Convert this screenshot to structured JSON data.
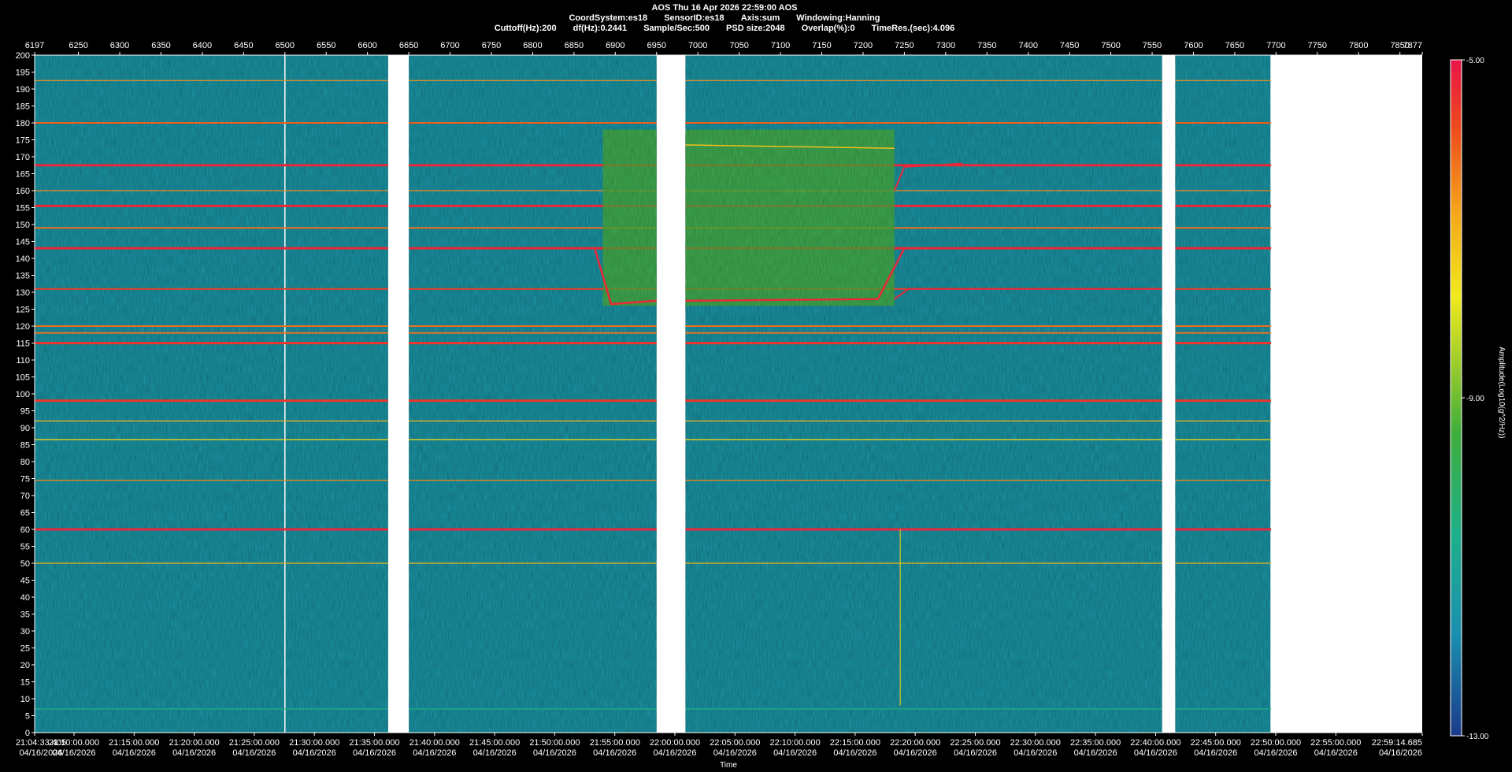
{
  "header": {
    "line1": "AOS  Thu 16 Apr 2026 22:59:00  AOS",
    "line2": [
      "CoordSystem:es18",
      "SensorID:es18",
      "Axis:sum",
      "Windowing:Hanning"
    ],
    "line3": [
      "Cuttoff(Hz):200",
      "df(Hz):0.2441",
      "Sample/Sec:500",
      "PSD size:2048",
      "Overlap(%):0",
      "TimeRes.(sec):4.096"
    ]
  },
  "chart_data": {
    "type": "heatmap",
    "title": "",
    "xlabel": "Time",
    "ylabel": "",
    "colorbar_label": "Amplitude(Log10(g^2/Hz))",
    "colorbar_ticks": [
      "-5.00",
      "-9.00",
      "-13.00"
    ],
    "colorbar_range": [
      -13,
      -5
    ],
    "ylim": [
      0,
      200
    ],
    "y_ticks": [
      0,
      5,
      10,
      15,
      20,
      25,
      30,
      35,
      40,
      45,
      50,
      55,
      60,
      65,
      70,
      75,
      80,
      85,
      90,
      95,
      100,
      105,
      110,
      115,
      120,
      125,
      130,
      135,
      140,
      145,
      150,
      155,
      160,
      165,
      170,
      175,
      180,
      185,
      190,
      195,
      200
    ],
    "top_axis_range": [
      6197,
      7877
    ],
    "top_axis_ticks": [
      "6197",
      "6250",
      "6300",
      "6350",
      "6400",
      "6450",
      "6500",
      "6550",
      "6600",
      "6650",
      "6700",
      "6750",
      "6800",
      "6850",
      "6900",
      "6950",
      "7000",
      "7050",
      "7100",
      "7150",
      "7200",
      "7250",
      "7300",
      "7350",
      "7400",
      "7450",
      "7500",
      "7550",
      "7600",
      "7650",
      "7700",
      "7750",
      "7800",
      "7850",
      "7877"
    ],
    "x_ticks": [
      {
        "time": "21:04:33.405",
        "date": "04/16/2026"
      },
      {
        "time": "21:10:00.000",
        "date": "04/16/2026"
      },
      {
        "time": "21:15:00.000",
        "date": "04/16/2026"
      },
      {
        "time": "21:20:00.000",
        "date": "04/16/2026"
      },
      {
        "time": "21:25:00.000",
        "date": "04/16/2026"
      },
      {
        "time": "21:30:00.000",
        "date": "04/16/2026"
      },
      {
        "time": "21:35:00.000",
        "date": "04/16/2026"
      },
      {
        "time": "21:40:00.000",
        "date": "04/16/2026"
      },
      {
        "time": "21:45:00.000",
        "date": "04/16/2026"
      },
      {
        "time": "21:50:00.000",
        "date": "04/16/2026"
      },
      {
        "time": "21:55:00.000",
        "date": "04/16/2026"
      },
      {
        "time": "22:00:00.000",
        "date": "04/16/2026"
      },
      {
        "time": "22:05:00.000",
        "date": "04/16/2026"
      },
      {
        "time": "22:10:00.000",
        "date": "04/16/2026"
      },
      {
        "time": "22:15:00.000",
        "date": "04/16/2026"
      },
      {
        "time": "22:20:00.000",
        "date": "04/16/2026"
      },
      {
        "time": "22:25:00.000",
        "date": "04/16/2026"
      },
      {
        "time": "22:30:00.000",
        "date": "04/16/2026"
      },
      {
        "time": "22:35:00.000",
        "date": "04/16/2026"
      },
      {
        "time": "22:40:00.000",
        "date": "04/16/2026"
      },
      {
        "time": "22:45:00.000",
        "date": "04/16/2026"
      },
      {
        "time": "22:50:00.000",
        "date": "04/16/2026"
      },
      {
        "time": "22:55:00.000",
        "date": "04/16/2026"
      },
      {
        "time": "22:59:14.685",
        "date": "04/16/2026"
      }
    ],
    "data_segments": [
      [
        6197,
        6625
      ],
      [
        6650,
        6950
      ],
      [
        6985,
        7562
      ],
      [
        7578,
        7694
      ]
    ],
    "dropout_lines": [
      6500,
      7694
    ],
    "horizontal_lines": [
      {
        "hz": 7,
        "level": -10.5
      },
      {
        "hz": 50,
        "level": -7.0
      },
      {
        "hz": 60,
        "level": -5.3
      },
      {
        "hz": 74.5,
        "level": -6.5
      },
      {
        "hz": 86.5,
        "level": -7.5
      },
      {
        "hz": 92,
        "level": -7.0
      },
      {
        "hz": 98,
        "level": -5.5
      },
      {
        "hz": 115,
        "level": -5.5
      },
      {
        "hz": 118,
        "level": -6.2
      },
      {
        "hz": 120,
        "level": -6.2
      },
      {
        "hz": 131,
        "level": -5.6
      },
      {
        "hz": 143,
        "level": -5.3
      },
      {
        "hz": 149,
        "level": -6.2
      },
      {
        "hz": 155.5,
        "level": -5.3
      },
      {
        "hz": 160,
        "level": -6.5
      },
      {
        "hz": 167.5,
        "level": -5.3
      },
      {
        "hz": 180,
        "level": -6.0
      },
      {
        "hz": 192.5,
        "level": -6.6
      }
    ],
    "background_profile": [
      {
        "hz": 0,
        "level": -11.5
      },
      {
        "hz": 10,
        "level": -11.0
      },
      {
        "hz": 12,
        "level": -8.5
      },
      {
        "hz": 15,
        "level": -7.5
      },
      {
        "hz": 20,
        "level": -9.0
      },
      {
        "hz": 25,
        "level": -8.7
      },
      {
        "hz": 35,
        "level": -9.6
      },
      {
        "hz": 45,
        "level": -9.3
      },
      {
        "hz": 55,
        "level": -9.0
      },
      {
        "hz": 62,
        "level": -8.3
      },
      {
        "hz": 80,
        "level": -8.2
      },
      {
        "hz": 90,
        "level": -7.8
      },
      {
        "hz": 96,
        "level": -7.0
      },
      {
        "hz": 105,
        "level": -6.6
      },
      {
        "hz": 115,
        "level": -6.8
      },
      {
        "hz": 120,
        "level": -8.2
      },
      {
        "hz": 140,
        "level": -8.4
      },
      {
        "hz": 178,
        "level": -8.6
      },
      {
        "hz": 184,
        "level": -7.8
      },
      {
        "hz": 195,
        "level": -7.8
      },
      {
        "hz": 200,
        "level": -8.3
      }
    ]
  }
}
